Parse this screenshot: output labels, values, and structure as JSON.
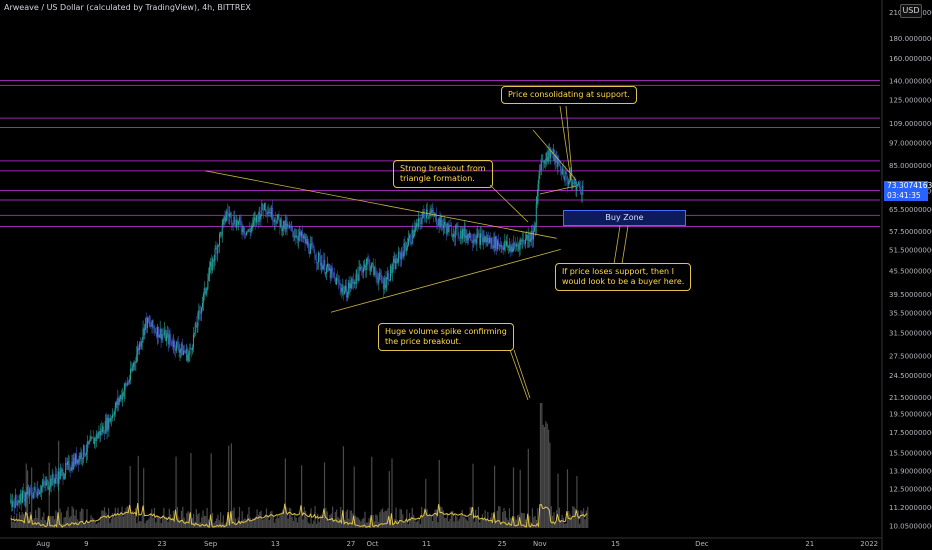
{
  "header": {
    "title": "Arweave / US Dollar (calculated by TradingView), 4h, BITTREX",
    "currency_badge": "USD"
  },
  "price_tag": {
    "value": "73.30741633",
    "countdown": "03:41:35"
  },
  "annotations": {
    "consolidating": "Price consolidating at support.",
    "breakout_line1": "Strong breakout from",
    "breakout_line2": "triangle formation.",
    "buy_zone": "Buy Zone",
    "loses_support_line1": "If price loses support, then I",
    "loses_support_line2": "would look to be a buyer here.",
    "volume_line1": "Huge volume spike confirming",
    "volume_line2": "the price breakout."
  },
  "colors": {
    "background": "#000000",
    "up_candle": "#26a69a",
    "down_candle": "#3f51b5",
    "resistance_line": "#9c27b0",
    "trendline": "#c8b44a",
    "volume_ma": "#e0c34a",
    "grid_text": "#b2b5be"
  },
  "chart_data": {
    "type": "candlestick",
    "title": "Arweave / US Dollar (calculated by TradingView), 4h, BITTREX",
    "yscale": "log",
    "y_ticks": [
      "210.00000000",
      "180.00000000",
      "160.00000000",
      "140.00000000",
      "125.00000000",
      "109.00000000",
      "97.00000000",
      "85.00000000",
      "73.00000000",
      "65.50000000",
      "57.50000000",
      "51.50000000",
      "45.50000000",
      "39.50000000",
      "35.50000000",
      "31.50000000",
      "27.50000000",
      "24.50000000",
      "21.50000000",
      "19.50000000",
      "17.50000000",
      "15.50000000",
      "13.90000000",
      "12.50000000",
      "11.20000000",
      "10.05000000"
    ],
    "x_ticks": [
      "Aug",
      "9",
      "23",
      "Sep",
      "13",
      "27",
      "Oct",
      "11",
      "25",
      "Nov",
      "15",
      "Dec",
      "21",
      "2022"
    ],
    "last_price": 73.30741633,
    "price_path": [
      {
        "date": "2021-07-26",
        "close": 11.5
      },
      {
        "date": "2021-07-30",
        "close": 12.2
      },
      {
        "date": "2021-08-04",
        "close": 13.5
      },
      {
        "date": "2021-08-09",
        "close": 15.8
      },
      {
        "date": "2021-08-13",
        "close": 18.5
      },
      {
        "date": "2021-08-17",
        "close": 24.0
      },
      {
        "date": "2021-08-20",
        "close": 33.5
      },
      {
        "date": "2021-08-24",
        "close": 30.5
      },
      {
        "date": "2021-08-28",
        "close": 27.5
      },
      {
        "date": "2021-09-01",
        "close": 46.0
      },
      {
        "date": "2021-09-04",
        "close": 64.0
      },
      {
        "date": "2021-09-08",
        "close": 57.0
      },
      {
        "date": "2021-09-11",
        "close": 67.0
      },
      {
        "date": "2021-09-14",
        "close": 60.0
      },
      {
        "date": "2021-09-18",
        "close": 55.0
      },
      {
        "date": "2021-09-23",
        "close": 45.0
      },
      {
        "date": "2021-09-26",
        "close": 40.0
      },
      {
        "date": "2021-09-30",
        "close": 48.0
      },
      {
        "date": "2021-10-03",
        "close": 42.0
      },
      {
        "date": "2021-10-08",
        "close": 55.0
      },
      {
        "date": "2021-10-11",
        "close": 65.0
      },
      {
        "date": "2021-10-15",
        "close": 58.0
      },
      {
        "date": "2021-10-19",
        "close": 56.0
      },
      {
        "date": "2021-10-23",
        "close": 54.0
      },
      {
        "date": "2021-10-27",
        "close": 52.0
      },
      {
        "date": "2021-10-31",
        "close": 57.0
      },
      {
        "date": "2021-11-01",
        "close": 85.0
      },
      {
        "date": "2021-11-03",
        "close": 92.0
      },
      {
        "date": "2021-11-06",
        "close": 78.0
      },
      {
        "date": "2021-11-09",
        "close": 73.3
      }
    ],
    "horizontal_levels": [
      140,
      136,
      112,
      106,
      87,
      82,
      73,
      69,
      63,
      59
    ],
    "buy_zone": [
      57.5,
      65.5
    ],
    "trendlines": [
      {
        "name": "upper",
        "from": {
          "date": "2021-09-01",
          "price": 82
        },
        "to": {
          "date": "2021-11-03",
          "price": 55
        }
      },
      {
        "name": "lower",
        "from": {
          "date": "2021-09-27",
          "price": 35.5
        },
        "to": {
          "date": "2021-11-03",
          "price": 51.5
        }
      }
    ],
    "volume": {
      "spike_date": "2021-11-01",
      "note": "Huge volume spike confirming the price breakout."
    }
  }
}
